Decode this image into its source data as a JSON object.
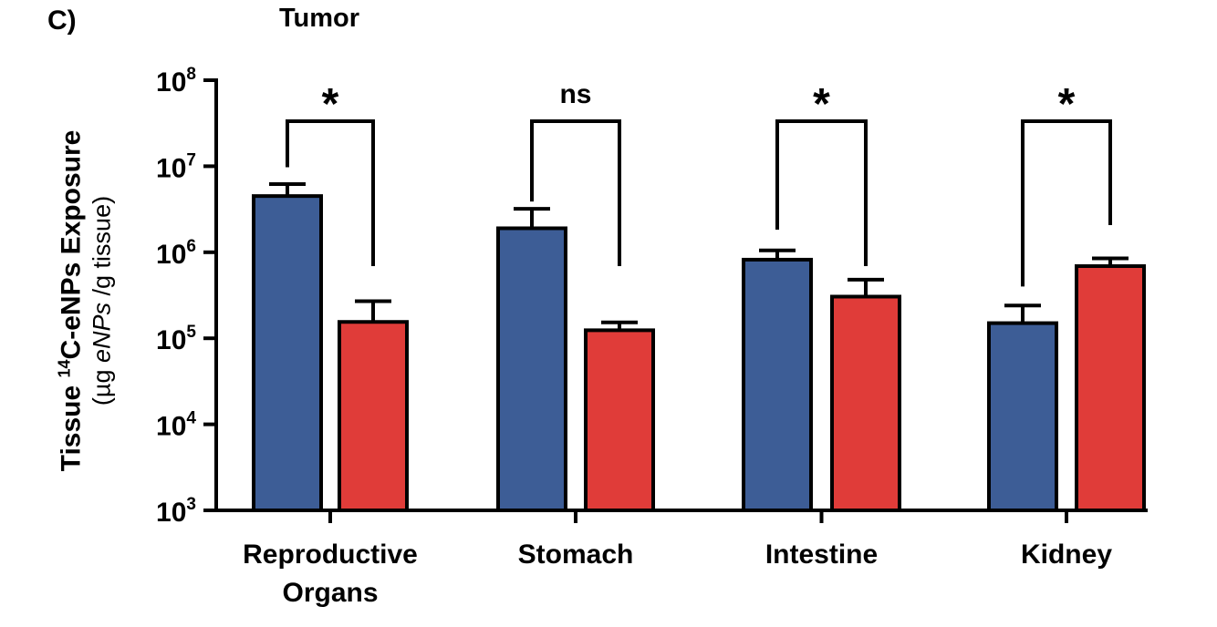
{
  "panel_label": "C)",
  "chart_data": {
    "type": "bar",
    "title": "Tumor",
    "ylabel": {
      "line1_prefix": "Tissue ",
      "line1_sup": "14",
      "line1_suffix": "C-eNPs Exposure",
      "line2_open": "(µg ",
      "line2_italic": "eNPs",
      "line2_close": " /g tissue)"
    },
    "y_scale": "log",
    "ylim": [
      1000,
      100000000
    ],
    "y_ticks": [
      {
        "value": 1000,
        "base": "10",
        "exp": "3"
      },
      {
        "value": 10000,
        "base": "10",
        "exp": "4"
      },
      {
        "value": 100000,
        "base": "10",
        "exp": "5"
      },
      {
        "value": 1000000,
        "base": "10",
        "exp": "6"
      },
      {
        "value": 10000000,
        "base": "10",
        "exp": "7"
      },
      {
        "value": 100000000,
        "base": "10",
        "exp": "8"
      }
    ],
    "categories": [
      {
        "label_lines": [
          "Reproductive",
          "Organs"
        ]
      },
      {
        "label_lines": [
          "Stomach"
        ]
      },
      {
        "label_lines": [
          "Intestine"
        ]
      },
      {
        "label_lines": [
          "Kidney"
        ]
      }
    ],
    "series": [
      {
        "color": "#3d5d96",
        "values": [
          4500000,
          1900000,
          820000,
          150000
        ],
        "error_upper": [
          6200000,
          3200000,
          1050000,
          240000
        ]
      },
      {
        "color": "#e03c39",
        "values": [
          155000,
          124000,
          305000,
          690000
        ],
        "error_upper": [
          270000,
          153000,
          480000,
          850000
        ]
      }
    ],
    "significance": [
      {
        "label": "*"
      },
      {
        "label": "ns"
      },
      {
        "label": "*"
      },
      {
        "label": "*"
      }
    ],
    "grid": false,
    "legend": "none"
  }
}
